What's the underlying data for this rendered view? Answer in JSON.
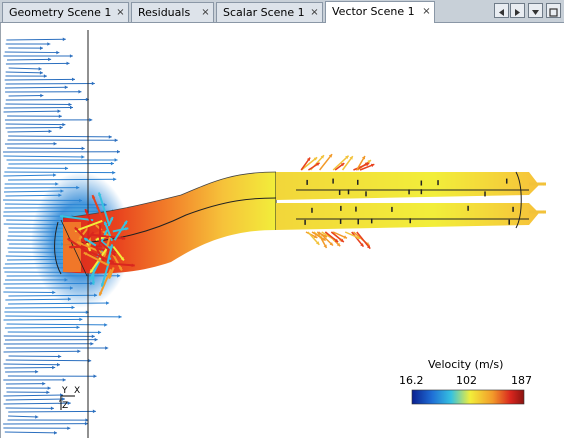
{
  "tabs": [
    {
      "label": "Geometry Scene 1",
      "active": false
    },
    {
      "label": "Residuals",
      "active": false
    },
    {
      "label": "Scalar Scene 1",
      "active": false
    },
    {
      "label": "Vector Scene 1",
      "active": true
    }
  ],
  "tab_close_glyph": "×",
  "legend": {
    "title": "Velocity (m/s)",
    "min": "16.2",
    "mid": "102",
    "max": "187",
    "colors": [
      "#0a1f8f",
      "#1f6fd6",
      "#36c2e0",
      "#f2ee3a",
      "#f29a2a",
      "#d9261e",
      "#8a1410"
    ]
  },
  "axes": {
    "y": "Y",
    "x": "X",
    "z": "Z"
  },
  "icons": [
    "prev-tab-icon",
    "next-tab-icon",
    "tab-list-icon",
    "maximize-icon"
  ]
}
